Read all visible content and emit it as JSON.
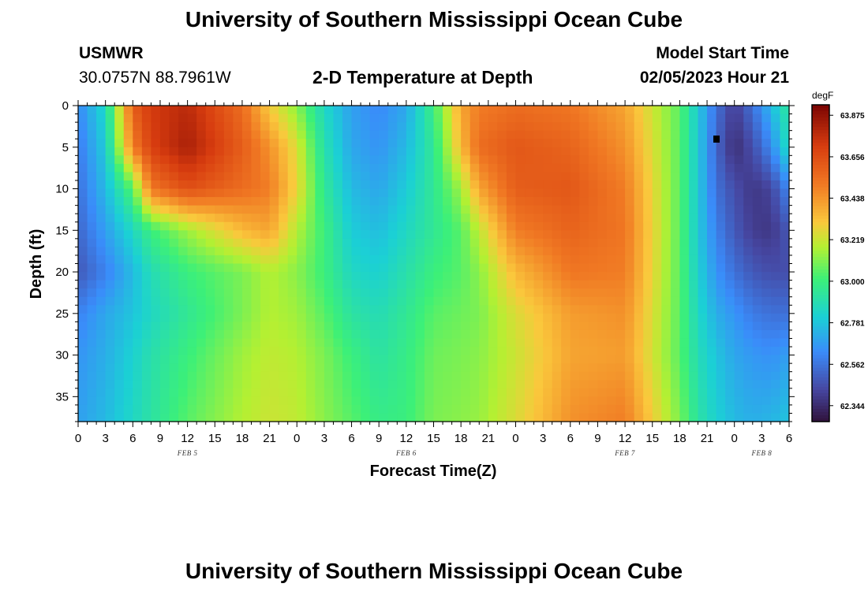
{
  "page": {
    "title": "University of Southern Mississippi Ocean Cube",
    "footer_title": "University of Southern Mississippi Ocean Cube",
    "station": {
      "name": "USMWR",
      "coords": "30.0757N  88.7961W"
    },
    "subtitle": "2-D Temperature at Depth",
    "model_start": {
      "label": "Model Start Time",
      "value": "02/05/2023 Hour 21"
    }
  },
  "chart_data": {
    "type": "heatmap",
    "title": "2-D Temperature at Depth",
    "xlabel": "Forecast Time(Z)",
    "ylabel": "Depth (ft)",
    "x_tick_labels": [
      "0",
      "3",
      "6",
      "9",
      "12",
      "15",
      "18",
      "21",
      "0",
      "3",
      "6",
      "9",
      "12",
      "15",
      "18",
      "21",
      "0",
      "3",
      "6",
      "9",
      "12",
      "15",
      "18",
      "21",
      "0",
      "3",
      "6"
    ],
    "x_range_hours": [
      0,
      78
    ],
    "date_labels": [
      {
        "text": "FEB 5",
        "hour": 12
      },
      {
        "text": "FEB 6",
        "hour": 36
      },
      {
        "text": "FEB 7",
        "hour": 60
      },
      {
        "text": "FEB 8",
        "hour": 75
      }
    ],
    "y_ticks": [
      0,
      5,
      10,
      15,
      20,
      25,
      30,
      35
    ],
    "y_range": [
      0,
      38
    ],
    "colorbar": {
      "units": "degF",
      "min": 62.26,
      "max": 63.93,
      "labels": [
        "63.875",
        "63.656",
        "63.438",
        "63.219",
        "63.000",
        "62.781",
        "62.562",
        "62.344"
      ]
    },
    "temperature_profile_degF": {
      "hours": [
        0,
        3,
        6,
        8,
        12,
        18,
        21,
        24,
        27,
        30,
        33,
        36,
        39,
        42,
        44,
        48,
        54,
        60,
        66,
        68,
        70,
        72,
        74,
        76,
        78
      ],
      "depths": [
        0,
        5,
        10,
        15,
        20,
        25,
        30,
        38
      ],
      "values": [
        [
          62.62,
          62.58,
          62.55,
          62.52,
          62.48,
          62.6,
          62.65,
          62.68
        ],
        [
          62.85,
          62.8,
          62.75,
          62.68,
          62.6,
          62.7,
          62.72,
          62.75
        ],
        [
          63.6,
          63.5,
          63.05,
          62.85,
          62.75,
          62.78,
          62.82,
          62.85
        ],
        [
          63.72,
          63.7,
          63.52,
          63.0,
          62.88,
          62.85,
          62.9,
          62.92
        ],
        [
          63.78,
          63.82,
          63.65,
          63.15,
          63.0,
          62.95,
          63.0,
          63.05
        ],
        [
          63.55,
          63.6,
          63.55,
          63.35,
          63.1,
          63.1,
          63.15,
          63.18
        ],
        [
          63.3,
          63.45,
          63.5,
          63.4,
          63.18,
          63.18,
          63.2,
          63.22
        ],
        [
          63.12,
          63.25,
          63.28,
          63.18,
          63.12,
          63.15,
          63.18,
          63.2
        ],
        [
          62.85,
          62.9,
          62.95,
          63.0,
          63.0,
          63.05,
          63.1,
          63.12
        ],
        [
          62.68,
          62.7,
          62.75,
          62.8,
          62.85,
          62.92,
          63.0,
          63.05
        ],
        [
          62.62,
          62.65,
          62.7,
          62.76,
          62.82,
          62.88,
          62.92,
          62.98
        ],
        [
          62.7,
          62.75,
          62.8,
          62.85,
          62.9,
          62.95,
          62.98,
          63.0
        ],
        [
          63.0,
          62.95,
          62.95,
          62.95,
          63.0,
          63.05,
          63.08,
          63.1
        ],
        [
          63.4,
          63.35,
          63.15,
          63.05,
          63.05,
          63.08,
          63.1,
          63.12
        ],
        [
          63.5,
          63.55,
          63.4,
          63.2,
          63.12,
          63.1,
          63.12,
          63.14
        ],
        [
          63.55,
          63.62,
          63.6,
          63.5,
          63.35,
          63.25,
          63.22,
          63.25
        ],
        [
          63.52,
          63.58,
          63.62,
          63.58,
          63.52,
          63.42,
          63.4,
          63.45
        ],
        [
          63.4,
          63.45,
          63.5,
          63.52,
          63.5,
          63.45,
          63.42,
          63.5
        ],
        [
          63.05,
          63.05,
          63.05,
          63.05,
          63.05,
          63.05,
          63.05,
          63.1
        ],
        [
          62.8,
          62.8,
          62.8,
          62.8,
          62.82,
          62.85,
          62.88,
          62.92
        ],
        [
          62.55,
          62.52,
          62.55,
          62.6,
          62.65,
          62.72,
          62.78,
          62.82
        ],
        [
          62.4,
          62.35,
          62.45,
          62.48,
          62.55,
          62.65,
          62.7,
          62.75
        ],
        [
          62.55,
          62.45,
          62.38,
          62.4,
          62.48,
          62.58,
          62.66,
          62.72
        ],
        [
          62.75,
          62.62,
          62.42,
          62.38,
          62.45,
          62.55,
          62.64,
          62.74
        ],
        [
          62.95,
          62.88,
          62.62,
          62.48,
          62.45,
          62.55,
          62.68,
          62.78
        ]
      ]
    }
  }
}
